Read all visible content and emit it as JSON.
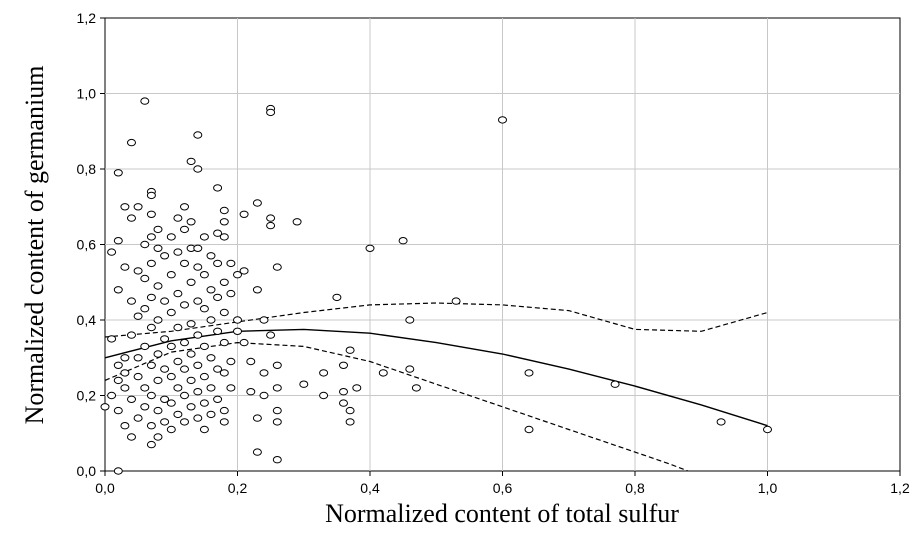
{
  "chart_data": {
    "type": "scatter",
    "title": "",
    "xlabel": "Normalized content of total sulfur",
    "ylabel": "Normalized content of germanium",
    "xlim": [
      0,
      1.2
    ],
    "ylim": [
      0,
      1.2
    ],
    "grid": true,
    "x_ticks": [
      "0,0",
      "0,2",
      "0,4",
      "0,6",
      "0,8",
      "1,0",
      "1,2"
    ],
    "y_ticks": [
      "0,0",
      "0,2",
      "0,4",
      "0,6",
      "0,8",
      "1,0",
      "1,2"
    ],
    "points": [
      [
        0.0,
        0.17
      ],
      [
        0.01,
        0.2
      ],
      [
        0.01,
        0.35
      ],
      [
        0.01,
        0.58
      ],
      [
        0.02,
        0.0
      ],
      [
        0.02,
        0.48
      ],
      [
        0.02,
        0.61
      ],
      [
        0.02,
        0.79
      ],
      [
        0.02,
        0.28
      ],
      [
        0.02,
        0.24
      ],
      [
        0.02,
        0.16
      ],
      [
        0.03,
        0.3
      ],
      [
        0.03,
        0.22
      ],
      [
        0.03,
        0.12
      ],
      [
        0.03,
        0.7
      ],
      [
        0.03,
        0.26
      ],
      [
        0.03,
        0.54
      ],
      [
        0.04,
        0.09
      ],
      [
        0.04,
        0.19
      ],
      [
        0.04,
        0.36
      ],
      [
        0.04,
        0.45
      ],
      [
        0.04,
        0.67
      ],
      [
        0.04,
        0.87
      ],
      [
        0.05,
        0.7
      ],
      [
        0.05,
        0.3
      ],
      [
        0.05,
        0.14
      ],
      [
        0.05,
        0.25
      ],
      [
        0.05,
        0.41
      ],
      [
        0.05,
        0.53
      ],
      [
        0.06,
        0.98
      ],
      [
        0.06,
        0.17
      ],
      [
        0.06,
        0.22
      ],
      [
        0.06,
        0.33
      ],
      [
        0.06,
        0.43
      ],
      [
        0.06,
        0.6
      ],
      [
        0.06,
        0.51
      ],
      [
        0.07,
        0.74
      ],
      [
        0.07,
        0.73
      ],
      [
        0.07,
        0.68
      ],
      [
        0.07,
        0.62
      ],
      [
        0.07,
        0.55
      ],
      [
        0.07,
        0.46
      ],
      [
        0.07,
        0.38
      ],
      [
        0.07,
        0.28
      ],
      [
        0.07,
        0.2
      ],
      [
        0.07,
        0.12
      ],
      [
        0.07,
        0.07
      ],
      [
        0.08,
        0.64
      ],
      [
        0.08,
        0.59
      ],
      [
        0.08,
        0.49
      ],
      [
        0.08,
        0.4
      ],
      [
        0.08,
        0.31
      ],
      [
        0.08,
        0.24
      ],
      [
        0.08,
        0.16
      ],
      [
        0.08,
        0.09
      ],
      [
        0.09,
        0.57
      ],
      [
        0.09,
        0.45
      ],
      [
        0.09,
        0.35
      ],
      [
        0.09,
        0.27
      ],
      [
        0.09,
        0.19
      ],
      [
        0.09,
        0.13
      ],
      [
        0.1,
        0.62
      ],
      [
        0.1,
        0.52
      ],
      [
        0.1,
        0.42
      ],
      [
        0.1,
        0.33
      ],
      [
        0.1,
        0.25
      ],
      [
        0.1,
        0.18
      ],
      [
        0.1,
        0.11
      ],
      [
        0.11,
        0.67
      ],
      [
        0.11,
        0.58
      ],
      [
        0.11,
        0.47
      ],
      [
        0.11,
        0.38
      ],
      [
        0.11,
        0.29
      ],
      [
        0.11,
        0.22
      ],
      [
        0.11,
        0.15
      ],
      [
        0.12,
        0.7
      ],
      [
        0.12,
        0.64
      ],
      [
        0.12,
        0.55
      ],
      [
        0.12,
        0.44
      ],
      [
        0.12,
        0.34
      ],
      [
        0.12,
        0.27
      ],
      [
        0.12,
        0.2
      ],
      [
        0.12,
        0.13
      ],
      [
        0.13,
        0.82
      ],
      [
        0.13,
        0.66
      ],
      [
        0.13,
        0.59
      ],
      [
        0.13,
        0.5
      ],
      [
        0.13,
        0.39
      ],
      [
        0.13,
        0.31
      ],
      [
        0.13,
        0.24
      ],
      [
        0.13,
        0.17
      ],
      [
        0.14,
        0.89
      ],
      [
        0.14,
        0.8
      ],
      [
        0.14,
        0.59
      ],
      [
        0.14,
        0.54
      ],
      [
        0.14,
        0.45
      ],
      [
        0.14,
        0.36
      ],
      [
        0.14,
        0.28
      ],
      [
        0.14,
        0.21
      ],
      [
        0.14,
        0.14
      ],
      [
        0.15,
        0.62
      ],
      [
        0.15,
        0.52
      ],
      [
        0.15,
        0.43
      ],
      [
        0.15,
        0.33
      ],
      [
        0.15,
        0.25
      ],
      [
        0.15,
        0.18
      ],
      [
        0.15,
        0.11
      ],
      [
        0.16,
        0.57
      ],
      [
        0.16,
        0.48
      ],
      [
        0.16,
        0.4
      ],
      [
        0.16,
        0.3
      ],
      [
        0.16,
        0.22
      ],
      [
        0.16,
        0.15
      ],
      [
        0.17,
        0.75
      ],
      [
        0.17,
        0.63
      ],
      [
        0.17,
        0.55
      ],
      [
        0.17,
        0.46
      ],
      [
        0.17,
        0.37
      ],
      [
        0.17,
        0.27
      ],
      [
        0.17,
        0.19
      ],
      [
        0.18,
        0.69
      ],
      [
        0.18,
        0.66
      ],
      [
        0.18,
        0.62
      ],
      [
        0.18,
        0.5
      ],
      [
        0.18,
        0.42
      ],
      [
        0.18,
        0.34
      ],
      [
        0.18,
        0.26
      ],
      [
        0.18,
        0.16
      ],
      [
        0.18,
        0.13
      ],
      [
        0.19,
        0.55
      ],
      [
        0.19,
        0.47
      ],
      [
        0.19,
        0.29
      ],
      [
        0.19,
        0.22
      ],
      [
        0.2,
        0.52
      ],
      [
        0.2,
        0.4
      ],
      [
        0.2,
        0.37
      ],
      [
        0.21,
        0.68
      ],
      [
        0.21,
        0.53
      ],
      [
        0.21,
        0.34
      ],
      [
        0.22,
        0.29
      ],
      [
        0.22,
        0.21
      ],
      [
        0.23,
        0.14
      ],
      [
        0.23,
        0.05
      ],
      [
        0.23,
        0.71
      ],
      [
        0.23,
        0.48
      ],
      [
        0.24,
        0.4
      ],
      [
        0.24,
        0.26
      ],
      [
        0.24,
        0.2
      ],
      [
        0.25,
        0.96
      ],
      [
        0.25,
        0.95
      ],
      [
        0.25,
        0.67
      ],
      [
        0.25,
        0.65
      ],
      [
        0.25,
        0.36
      ],
      [
        0.26,
        0.54
      ],
      [
        0.26,
        0.28
      ],
      [
        0.26,
        0.22
      ],
      [
        0.26,
        0.16
      ],
      [
        0.26,
        0.13
      ],
      [
        0.26,
        0.03
      ],
      [
        0.29,
        0.66
      ],
      [
        0.3,
        0.23
      ],
      [
        0.33,
        0.26
      ],
      [
        0.33,
        0.2
      ],
      [
        0.35,
        0.46
      ],
      [
        0.36,
        0.28
      ],
      [
        0.36,
        0.21
      ],
      [
        0.36,
        0.18
      ],
      [
        0.37,
        0.16
      ],
      [
        0.37,
        0.13
      ],
      [
        0.37,
        0.32
      ],
      [
        0.38,
        0.22
      ],
      [
        0.4,
        0.59
      ],
      [
        0.42,
        0.26
      ],
      [
        0.45,
        0.61
      ],
      [
        0.46,
        0.4
      ],
      [
        0.46,
        0.27
      ],
      [
        0.47,
        0.22
      ],
      [
        0.53,
        0.45
      ],
      [
        0.6,
        0.93
      ],
      [
        0.64,
        0.26
      ],
      [
        0.64,
        0.11
      ],
      [
        0.77,
        0.23
      ],
      [
        0.93,
        0.13
      ],
      [
        1.0,
        0.11
      ]
    ],
    "fit_line": [
      [
        0.0,
        0.3
      ],
      [
        0.1,
        0.345
      ],
      [
        0.2,
        0.37
      ],
      [
        0.3,
        0.375
      ],
      [
        0.4,
        0.365
      ],
      [
        0.5,
        0.34
      ],
      [
        0.6,
        0.31
      ],
      [
        0.7,
        0.27
      ],
      [
        0.8,
        0.225
      ],
      [
        0.9,
        0.175
      ],
      [
        1.0,
        0.12
      ]
    ],
    "upper_band": [
      [
        0.0,
        0.355
      ],
      [
        0.1,
        0.37
      ],
      [
        0.2,
        0.395
      ],
      [
        0.3,
        0.42
      ],
      [
        0.4,
        0.44
      ],
      [
        0.5,
        0.445
      ],
      [
        0.6,
        0.44
      ],
      [
        0.7,
        0.425
      ],
      [
        0.8,
        0.375
      ],
      [
        0.9,
        0.37
      ],
      [
        1.0,
        0.42
      ]
    ],
    "lower_band": [
      [
        0.0,
        0.24
      ],
      [
        0.1,
        0.315
      ],
      [
        0.2,
        0.34
      ],
      [
        0.3,
        0.33
      ],
      [
        0.4,
        0.29
      ],
      [
        0.5,
        0.23
      ],
      [
        0.6,
        0.17
      ],
      [
        0.7,
        0.11
      ],
      [
        0.8,
        0.05
      ],
      [
        0.85,
        0.02
      ],
      [
        0.88,
        0.0
      ]
    ]
  }
}
